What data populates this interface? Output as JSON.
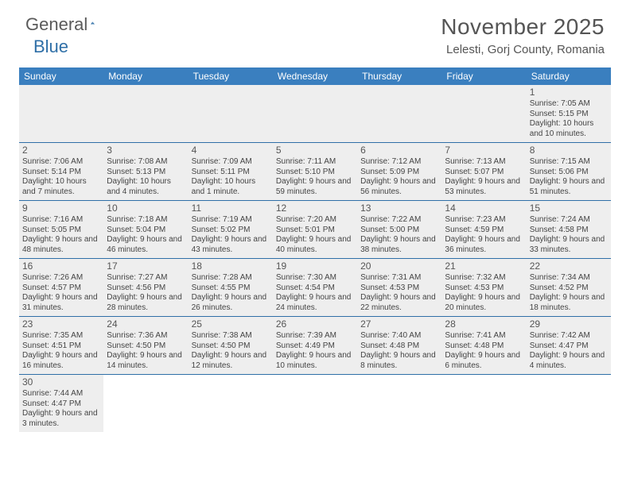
{
  "logo": {
    "text1": "General",
    "text2": "Blue"
  },
  "title": "November 2025",
  "location": "Lelesti, Gorj County, Romania",
  "colors": {
    "header_bg": "#3a7fbf",
    "header_text": "#ffffff",
    "cell_bg": "#eeeeee",
    "border": "#2f6fa7",
    "text": "#444444",
    "title_text": "#555555"
  },
  "day_headers": [
    "Sunday",
    "Monday",
    "Tuesday",
    "Wednesday",
    "Thursday",
    "Friday",
    "Saturday"
  ],
  "weeks": [
    [
      {
        "n": "",
        "sr": "",
        "ss": "",
        "dl": ""
      },
      {
        "n": "",
        "sr": "",
        "ss": "",
        "dl": ""
      },
      {
        "n": "",
        "sr": "",
        "ss": "",
        "dl": ""
      },
      {
        "n": "",
        "sr": "",
        "ss": "",
        "dl": ""
      },
      {
        "n": "",
        "sr": "",
        "ss": "",
        "dl": ""
      },
      {
        "n": "",
        "sr": "",
        "ss": "",
        "dl": ""
      },
      {
        "n": "1",
        "sr": "Sunrise: 7:05 AM",
        "ss": "Sunset: 5:15 PM",
        "dl": "Daylight: 10 hours and 10 minutes."
      }
    ],
    [
      {
        "n": "2",
        "sr": "Sunrise: 7:06 AM",
        "ss": "Sunset: 5:14 PM",
        "dl": "Daylight: 10 hours and 7 minutes."
      },
      {
        "n": "3",
        "sr": "Sunrise: 7:08 AM",
        "ss": "Sunset: 5:13 PM",
        "dl": "Daylight: 10 hours and 4 minutes."
      },
      {
        "n": "4",
        "sr": "Sunrise: 7:09 AM",
        "ss": "Sunset: 5:11 PM",
        "dl": "Daylight: 10 hours and 1 minute."
      },
      {
        "n": "5",
        "sr": "Sunrise: 7:11 AM",
        "ss": "Sunset: 5:10 PM",
        "dl": "Daylight: 9 hours and 59 minutes."
      },
      {
        "n": "6",
        "sr": "Sunrise: 7:12 AM",
        "ss": "Sunset: 5:09 PM",
        "dl": "Daylight: 9 hours and 56 minutes."
      },
      {
        "n": "7",
        "sr": "Sunrise: 7:13 AM",
        "ss": "Sunset: 5:07 PM",
        "dl": "Daylight: 9 hours and 53 minutes."
      },
      {
        "n": "8",
        "sr": "Sunrise: 7:15 AM",
        "ss": "Sunset: 5:06 PM",
        "dl": "Daylight: 9 hours and 51 minutes."
      }
    ],
    [
      {
        "n": "9",
        "sr": "Sunrise: 7:16 AM",
        "ss": "Sunset: 5:05 PM",
        "dl": "Daylight: 9 hours and 48 minutes."
      },
      {
        "n": "10",
        "sr": "Sunrise: 7:18 AM",
        "ss": "Sunset: 5:04 PM",
        "dl": "Daylight: 9 hours and 46 minutes."
      },
      {
        "n": "11",
        "sr": "Sunrise: 7:19 AM",
        "ss": "Sunset: 5:02 PM",
        "dl": "Daylight: 9 hours and 43 minutes."
      },
      {
        "n": "12",
        "sr": "Sunrise: 7:20 AM",
        "ss": "Sunset: 5:01 PM",
        "dl": "Daylight: 9 hours and 40 minutes."
      },
      {
        "n": "13",
        "sr": "Sunrise: 7:22 AM",
        "ss": "Sunset: 5:00 PM",
        "dl": "Daylight: 9 hours and 38 minutes."
      },
      {
        "n": "14",
        "sr": "Sunrise: 7:23 AM",
        "ss": "Sunset: 4:59 PM",
        "dl": "Daylight: 9 hours and 36 minutes."
      },
      {
        "n": "15",
        "sr": "Sunrise: 7:24 AM",
        "ss": "Sunset: 4:58 PM",
        "dl": "Daylight: 9 hours and 33 minutes."
      }
    ],
    [
      {
        "n": "16",
        "sr": "Sunrise: 7:26 AM",
        "ss": "Sunset: 4:57 PM",
        "dl": "Daylight: 9 hours and 31 minutes."
      },
      {
        "n": "17",
        "sr": "Sunrise: 7:27 AM",
        "ss": "Sunset: 4:56 PM",
        "dl": "Daylight: 9 hours and 28 minutes."
      },
      {
        "n": "18",
        "sr": "Sunrise: 7:28 AM",
        "ss": "Sunset: 4:55 PM",
        "dl": "Daylight: 9 hours and 26 minutes."
      },
      {
        "n": "19",
        "sr": "Sunrise: 7:30 AM",
        "ss": "Sunset: 4:54 PM",
        "dl": "Daylight: 9 hours and 24 minutes."
      },
      {
        "n": "20",
        "sr": "Sunrise: 7:31 AM",
        "ss": "Sunset: 4:53 PM",
        "dl": "Daylight: 9 hours and 22 minutes."
      },
      {
        "n": "21",
        "sr": "Sunrise: 7:32 AM",
        "ss": "Sunset: 4:53 PM",
        "dl": "Daylight: 9 hours and 20 minutes."
      },
      {
        "n": "22",
        "sr": "Sunrise: 7:34 AM",
        "ss": "Sunset: 4:52 PM",
        "dl": "Daylight: 9 hours and 18 minutes."
      }
    ],
    [
      {
        "n": "23",
        "sr": "Sunrise: 7:35 AM",
        "ss": "Sunset: 4:51 PM",
        "dl": "Daylight: 9 hours and 16 minutes."
      },
      {
        "n": "24",
        "sr": "Sunrise: 7:36 AM",
        "ss": "Sunset: 4:50 PM",
        "dl": "Daylight: 9 hours and 14 minutes."
      },
      {
        "n": "25",
        "sr": "Sunrise: 7:38 AM",
        "ss": "Sunset: 4:50 PM",
        "dl": "Daylight: 9 hours and 12 minutes."
      },
      {
        "n": "26",
        "sr": "Sunrise: 7:39 AM",
        "ss": "Sunset: 4:49 PM",
        "dl": "Daylight: 9 hours and 10 minutes."
      },
      {
        "n": "27",
        "sr": "Sunrise: 7:40 AM",
        "ss": "Sunset: 4:48 PM",
        "dl": "Daylight: 9 hours and 8 minutes."
      },
      {
        "n": "28",
        "sr": "Sunrise: 7:41 AM",
        "ss": "Sunset: 4:48 PM",
        "dl": "Daylight: 9 hours and 6 minutes."
      },
      {
        "n": "29",
        "sr": "Sunrise: 7:42 AM",
        "ss": "Sunset: 4:47 PM",
        "dl": "Daylight: 9 hours and 4 minutes."
      }
    ],
    [
      {
        "n": "30",
        "sr": "Sunrise: 7:44 AM",
        "ss": "Sunset: 4:47 PM",
        "dl": "Daylight: 9 hours and 3 minutes."
      },
      {
        "n": "",
        "sr": "",
        "ss": "",
        "dl": ""
      },
      {
        "n": "",
        "sr": "",
        "ss": "",
        "dl": ""
      },
      {
        "n": "",
        "sr": "",
        "ss": "",
        "dl": ""
      },
      {
        "n": "",
        "sr": "",
        "ss": "",
        "dl": ""
      },
      {
        "n": "",
        "sr": "",
        "ss": "",
        "dl": ""
      },
      {
        "n": "",
        "sr": "",
        "ss": "",
        "dl": ""
      }
    ]
  ]
}
